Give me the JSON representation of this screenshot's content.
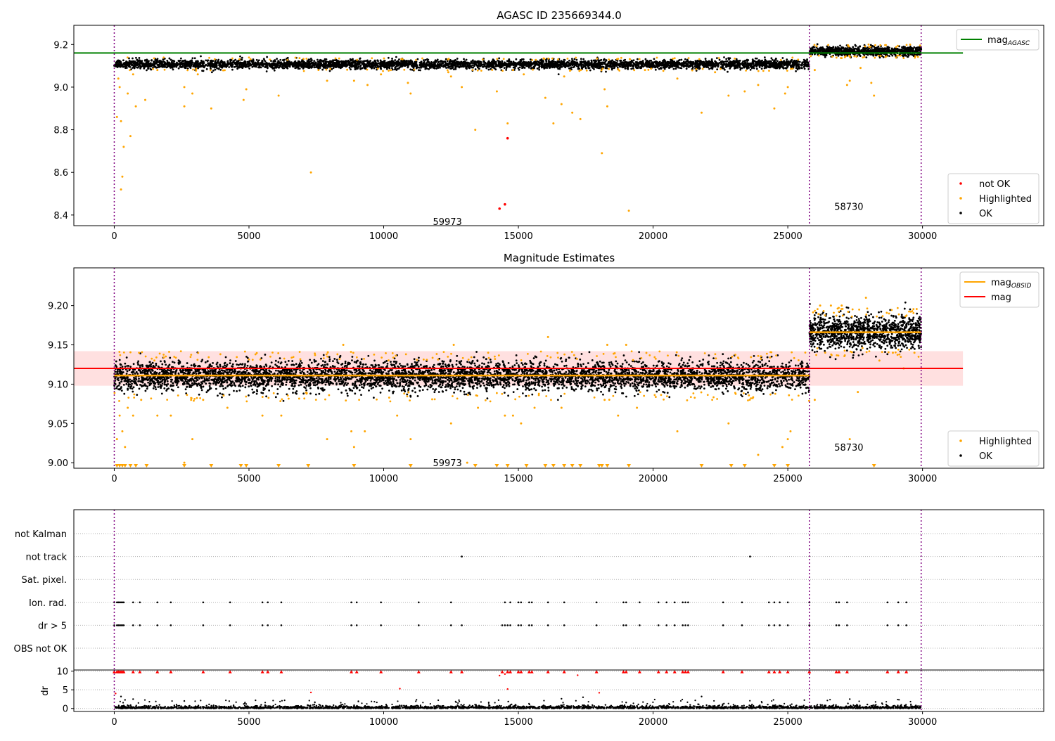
{
  "chart_data": [
    {
      "type": "scatter",
      "title": "AGASC ID 235669344.0",
      "xlim": [
        -1500,
        34500
      ],
      "ylim": [
        8.35,
        9.29
      ],
      "xticks": [
        0,
        5000,
        10000,
        15000,
        20000,
        25000,
        30000
      ],
      "yticks": [
        8.4,
        8.6,
        8.8,
        9.0,
        9.2
      ],
      "ytick_labels": [
        "8.4",
        "8.6",
        "8.8",
        "9.0",
        "9.2"
      ],
      "vlines": [
        0,
        25800,
        29950
      ],
      "hline": {
        "name": "mag_AGASC",
        "y": 9.16,
        "x": [
          -1500,
          31500
        ],
        "color": "#008000"
      },
      "bands": [
        {
          "x": [
            0,
            25800
          ],
          "y_center": 9.107,
          "y_spread": 0.025
        },
        {
          "x": [
            25800,
            29950
          ],
          "y_center": 9.168,
          "y_spread": 0.025
        }
      ],
      "series": [
        {
          "name": "not OK",
          "color": "#ff0000",
          "points": [
            [
              14600,
              8.76
            ],
            [
              14300,
              8.43
            ],
            [
              14500,
              8.45
            ]
          ]
        },
        {
          "name": "Highlighted",
          "color": "#ffa500",
          "points": [
            [
              100,
              8.86
            ],
            [
              150,
              9.04
            ],
            [
              200,
              9.0
            ],
            [
              250,
              8.84
            ],
            [
              300,
              8.58
            ],
            [
              250,
              8.52
            ],
            [
              350,
              8.72
            ],
            [
              500,
              8.97
            ],
            [
              600,
              8.77
            ],
            [
              800,
              8.91
            ],
            [
              1150,
              8.94
            ],
            [
              2600,
              9.0
            ],
            [
              2600,
              8.91
            ],
            [
              2900,
              8.97
            ],
            [
              3600,
              8.9
            ],
            [
              4800,
              8.94
            ],
            [
              4900,
              8.99
            ],
            [
              6100,
              8.96
            ],
            [
              7300,
              8.6
            ],
            [
              7900,
              9.03
            ],
            [
              8900,
              9.03
            ],
            [
              9400,
              9.01
            ],
            [
              10900,
              9.02
            ],
            [
              11000,
              8.97
            ],
            [
              12500,
              9.05
            ],
            [
              12900,
              9.0
            ],
            [
              13400,
              8.8
            ],
            [
              14200,
              8.98
            ],
            [
              14600,
              8.83
            ],
            [
              15200,
              9.06
            ],
            [
              16000,
              8.95
            ],
            [
              16300,
              8.83
            ],
            [
              16600,
              8.92
            ],
            [
              17000,
              8.88
            ],
            [
              17300,
              8.85
            ],
            [
              18100,
              8.69
            ],
            [
              18200,
              8.99
            ],
            [
              18300,
              8.91
            ],
            [
              19100,
              8.42
            ],
            [
              20900,
              9.04
            ],
            [
              21800,
              8.88
            ],
            [
              22800,
              8.96
            ],
            [
              23400,
              8.98
            ],
            [
              23900,
              9.01
            ],
            [
              24500,
              8.9
            ],
            [
              24900,
              8.97
            ],
            [
              25000,
              9.0
            ],
            [
              26000,
              9.08
            ],
            [
              27200,
              9.01
            ],
            [
              27300,
              9.03
            ],
            [
              27700,
              9.09
            ],
            [
              28100,
              9.02
            ],
            [
              28200,
              8.96
            ],
            [
              700,
              9.06
            ],
            [
              1600,
              9.08
            ],
            [
              3100,
              9.06
            ],
            [
              9900,
              9.06
            ],
            [
              12400,
              9.07
            ],
            [
              14800,
              9.08
            ],
            [
              16700,
              9.05
            ],
            [
              19700,
              9.08
            ],
            [
              22300,
              9.07
            ]
          ]
        },
        {
          "name": "OK",
          "color": "#000000",
          "points": []
        }
      ],
      "annotations": [
        {
          "text": "59973",
          "x": 12400,
          "y": 8.37
        },
        {
          "text": "58730",
          "x": 27300,
          "y": 8.44
        }
      ],
      "legend_upper": {
        "placement": "top-right",
        "entries": [
          {
            "label": "mag",
            "sub": "AGASC",
            "color": "#008000"
          }
        ]
      },
      "legend_lower": {
        "placement": "bottom-right",
        "entries": [
          {
            "label": "not OK",
            "color": "#ff0000"
          },
          {
            "label": "Highlighted",
            "color": "#ffa500"
          },
          {
            "label": "OK",
            "color": "#000000"
          }
        ]
      }
    },
    {
      "type": "scatter",
      "title": "Magnitude Estimates",
      "xlim": [
        -1500,
        34500
      ],
      "ylim": [
        8.993,
        9.248
      ],
      "xticks": [
        0,
        5000,
        10000,
        15000,
        20000,
        25000,
        30000
      ],
      "yticks": [
        9.0,
        9.05,
        9.1,
        9.15,
        9.2
      ],
      "ytick_labels": [
        "9.00",
        "9.05",
        "9.10",
        "9.15",
        "9.20"
      ],
      "vlines": [
        0,
        25800,
        29950
      ],
      "mag_band": {
        "y": 9.12,
        "low": 9.098,
        "high": 9.142,
        "x": [
          -1500,
          31500
        ],
        "color": "#ff0000"
      },
      "obsid_segments": [
        {
          "x": [
            0,
            25800
          ],
          "y": 9.111
        },
        {
          "x": [
            25800,
            29950
          ],
          "y": 9.166
        }
      ],
      "bands": [
        {
          "x": [
            0,
            25800
          ],
          "y_center": 9.11,
          "y_spread": 0.022
        },
        {
          "x": [
            25800,
            29950
          ],
          "y_center": 9.166,
          "y_spread": 0.025
        }
      ],
      "series": [
        {
          "name": "Highlighted",
          "color": "#ffa500",
          "points": [
            [
              100,
              9.03
            ],
            [
              200,
              9.06
            ],
            [
              300,
              9.04
            ],
            [
              400,
              9.02
            ],
            [
              500,
              9.07
            ],
            [
              700,
              9.06
            ],
            [
              1000,
              9.08
            ],
            [
              1600,
              9.06
            ],
            [
              2100,
              9.06
            ],
            [
              2600,
              9.0
            ],
            [
              2900,
              9.03
            ],
            [
              3300,
              9.08
            ],
            [
              4200,
              9.07
            ],
            [
              5500,
              9.06
            ],
            [
              6200,
              9.06
            ],
            [
              7900,
              9.03
            ],
            [
              8800,
              9.04
            ],
            [
              8900,
              9.02
            ],
            [
              9300,
              9.04
            ],
            [
              10500,
              9.06
            ],
            [
              11000,
              9.03
            ],
            [
              12500,
              9.05
            ],
            [
              13100,
              9.0
            ],
            [
              13500,
              9.07
            ],
            [
              14500,
              9.06
            ],
            [
              14800,
              9.06
            ],
            [
              15100,
              9.05
            ],
            [
              15600,
              9.07
            ],
            [
              16600,
              9.07
            ],
            [
              18200,
              9.08
            ],
            [
              18700,
              9.06
            ],
            [
              19400,
              9.07
            ],
            [
              20900,
              9.04
            ],
            [
              22800,
              9.05
            ],
            [
              23900,
              9.01
            ],
            [
              24800,
              9.02
            ],
            [
              25000,
              9.03
            ],
            [
              25100,
              9.04
            ],
            [
              26000,
              9.08
            ],
            [
              27300,
              9.03
            ],
            [
              27600,
              9.09
            ],
            [
              12600,
              9.15
            ],
            [
              16100,
              9.16
            ],
            [
              8500,
              9.15
            ],
            [
              18300,
              9.15
            ],
            [
              19000,
              9.15
            ],
            [
              26200,
              9.2
            ],
            [
              26600,
              9.2
            ],
            [
              27000,
              9.2
            ],
            [
              27900,
              9.21
            ],
            [
              28400,
              9.13
            ],
            [
              28900,
              9.14
            ],
            [
              29300,
              9.12
            ],
            [
              29700,
              9.14
            ]
          ],
          "clipped_x": [
            100,
            200,
            300,
            400,
            600,
            800,
            1200,
            2600,
            3600,
            4700,
            4900,
            6100,
            7200,
            8900,
            11000,
            13400,
            14200,
            14600,
            15300,
            16000,
            16300,
            16700,
            17000,
            17300,
            18000,
            18100,
            18300,
            19100,
            21800,
            22900,
            23400,
            24500,
            25000,
            28200
          ]
        },
        {
          "name": "OK",
          "color": "#000000",
          "points": []
        }
      ],
      "annotations": [
        {
          "text": "59973",
          "x": 12400,
          "y": 9.0
        },
        {
          "text": "58730",
          "x": 27300,
          "y": 9.02
        }
      ],
      "legend_upper": {
        "placement": "top-right",
        "entries": [
          {
            "label": "mag",
            "sub": "OBSID",
            "color": "#ffa500"
          },
          {
            "label": "mag",
            "sub": "",
            "color": "#ff0000"
          }
        ]
      },
      "legend_lower": {
        "placement": "bottom-right",
        "entries": [
          {
            "label": "Highlighted",
            "color": "#ffa500"
          },
          {
            "label": "OK",
            "color": "#000000"
          }
        ]
      }
    },
    {
      "type": "scatter",
      "xlim": [
        -1500,
        34500
      ],
      "xticks": [
        0,
        5000,
        10000,
        15000,
        20000,
        25000,
        30000
      ],
      "vlines": [
        0,
        25800,
        29950
      ],
      "flag_rows": [
        "not Kalman",
        "not track",
        "Sat. pixel.",
        "Ion. rad.",
        "dr > 5",
        "OBS not OK"
      ],
      "flag_points": {
        "not Kalman": [],
        "not track": [
          12900,
          23600
        ],
        "Sat. pixel.": [],
        "Ion. rad.": [
          0,
          100,
          150,
          200,
          250,
          300,
          350,
          700,
          950,
          1600,
          2100,
          3300,
          4300,
          5500,
          5700,
          6200,
          8800,
          9000,
          9900,
          11300,
          12500,
          14500,
          14700,
          15000,
          15100,
          15400,
          15500,
          16100,
          16700,
          17900,
          18900,
          19000,
          19500,
          20200,
          20500,
          20800,
          21100,
          21200,
          21300,
          22600,
          23300,
          24300,
          24500,
          24700,
          25000,
          25800,
          26800,
          26900,
          27200,
          28700,
          29100,
          29400
        ],
        "dr > 5": [
          0,
          100,
          150,
          200,
          250,
          300,
          350,
          700,
          950,
          1600,
          2100,
          3300,
          4300,
          5500,
          5700,
          6200,
          8800,
          9000,
          9900,
          11300,
          12500,
          12900,
          14400,
          14500,
          14600,
          14700,
          15000,
          15100,
          15400,
          15500,
          16100,
          16700,
          17900,
          18900,
          19000,
          19500,
          20200,
          20500,
          20800,
          21100,
          21200,
          21300,
          22600,
          23300,
          24300,
          24500,
          24700,
          25000,
          25800,
          26800,
          26900,
          27200,
          28700,
          29100,
          29400
        ],
        "OBS not OK": []
      },
      "dr_panel": {
        "ylabel": "dr",
        "ylim": [
          -0.8,
          10.3
        ],
        "yticks": [
          0,
          5,
          10
        ],
        "ytick_labels": [
          "0",
          "5",
          "10"
        ],
        "clipped_x": [
          0,
          100,
          150,
          200,
          250,
          300,
          350,
          700,
          950,
          1600,
          2100,
          3300,
          4300,
          5500,
          5700,
          6200,
          8800,
          9000,
          9900,
          11300,
          12500,
          12900,
          14400,
          14600,
          14700,
          15000,
          15100,
          15400,
          15500,
          16100,
          16700,
          17900,
          18900,
          19000,
          19500,
          20200,
          20500,
          20800,
          21100,
          21200,
          21300,
          22600,
          23300,
          24300,
          24500,
          24700,
          25000,
          25800,
          26800,
          26900,
          27200,
          28700,
          29100,
          29400
        ],
        "high_points": [
          [
            50,
            4.0
          ],
          [
            250,
            3.2
          ],
          [
            10600,
            5.3
          ],
          [
            14600,
            5.2
          ],
          [
            14300,
            8.8
          ],
          [
            14500,
            9.2
          ],
          [
            17200,
            8.9
          ],
          [
            7300,
            4.3
          ],
          [
            17400,
            3.0
          ],
          [
            21800,
            3.2
          ],
          [
            18000,
            4.2
          ],
          [
            400,
            2.3
          ],
          [
            700,
            2.5
          ],
          [
            2600,
            2.0
          ],
          [
            27300,
            2.5
          ],
          [
            13900,
            1.6
          ],
          [
            16600,
            2.6
          ],
          [
            19000,
            1.6
          ]
        ],
        "band_y": [
          0,
          0.8
        ]
      }
    }
  ]
}
